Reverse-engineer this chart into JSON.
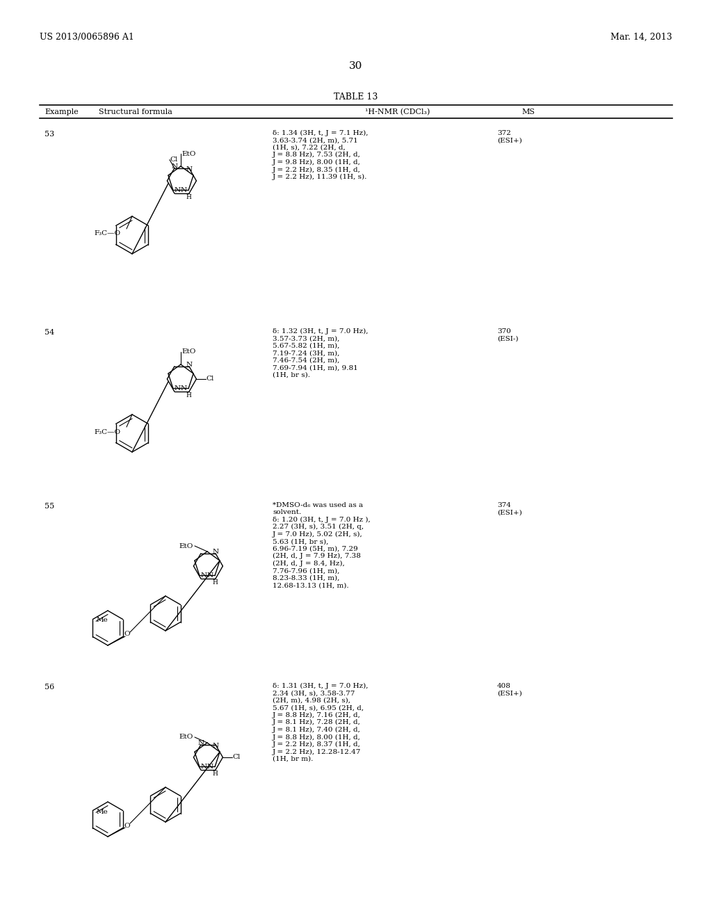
{
  "background_color": "#ffffff",
  "page_header_left": "US 2013/0065896 A1",
  "page_header_right": "Mar. 14, 2013",
  "page_number": "30",
  "table_title": "TABLE 13",
  "rows": [
    {
      "example": "53",
      "nmr": "δ: 1.34 (3H, t, J = 7.1 Hz),\n3.63-3.74 (2H, m), 5.71\n(1H, s), 7.22 (2H, d,\nJ = 8.8 Hz), 7.53 (2H, d,\nJ = 9.8 Hz), 8.00 (1H, d,\nJ = 2.2 Hz), 8.35 (1H, d,\nJ = 2.2 Hz), 11.39 (1H, s).",
      "ms": "372\n(ESI+)"
    },
    {
      "example": "54",
      "nmr": "δ: 1.32 (3H, t, J = 7.0 Hz),\n3.57-3.73 (2H, m),\n5.67-5.82 (1H, m),\n7.19-7.24 (3H, m),\n7.46-7.54 (2H, m),\n7.69-7.94 (1H, m), 9.81\n(1H, br s).",
      "ms": "370\n(ESI-)"
    },
    {
      "example": "55",
      "nmr": "*DMSO-d₆ was used as a\nsolvent.\nδ: 1.20 (3H, t, J = 7.0 Hz ),\n2.27 (3H, s), 3.51 (2H, q,\nJ = 7.0 Hz), 5.02 (2H, s),\n5.63 (1H, br s),\n6.96-7.19 (5H, m), 7.29\n(2H, d, J = 7.9 Hz), 7.38\n(2H, d, J = 8.4, Hz),\n7.76-7.96 (1H, m),\n8.23-8.33 (1H, m),\n12.68-13.13 (1H, m).",
      "ms": "374\n(ESI+)"
    },
    {
      "example": "56",
      "nmr": "δ: 1.31 (3H, t, J = 7.0 Hz),\n2.34 (3H, s), 3.58-3.77\n(2H, m), 4.98 (2H, s),\n5.67 (1H, s), 6.95 (2H, d,\nJ = 8.8 Hz), 7.16 (2H, d,\nJ = 8.1 Hz), 7.28 (2H, d,\nJ = 8.1 Hz), 7.40 (2H, d,\nJ = 8.8 Hz), 8.00 (1H, d,\nJ = 2.2 Hz), 8.37 (1H, d,\nJ = 2.2 Hz), 12.28-12.47\n(1H, br m).",
      "ms": "408\n(ESI+)"
    }
  ]
}
